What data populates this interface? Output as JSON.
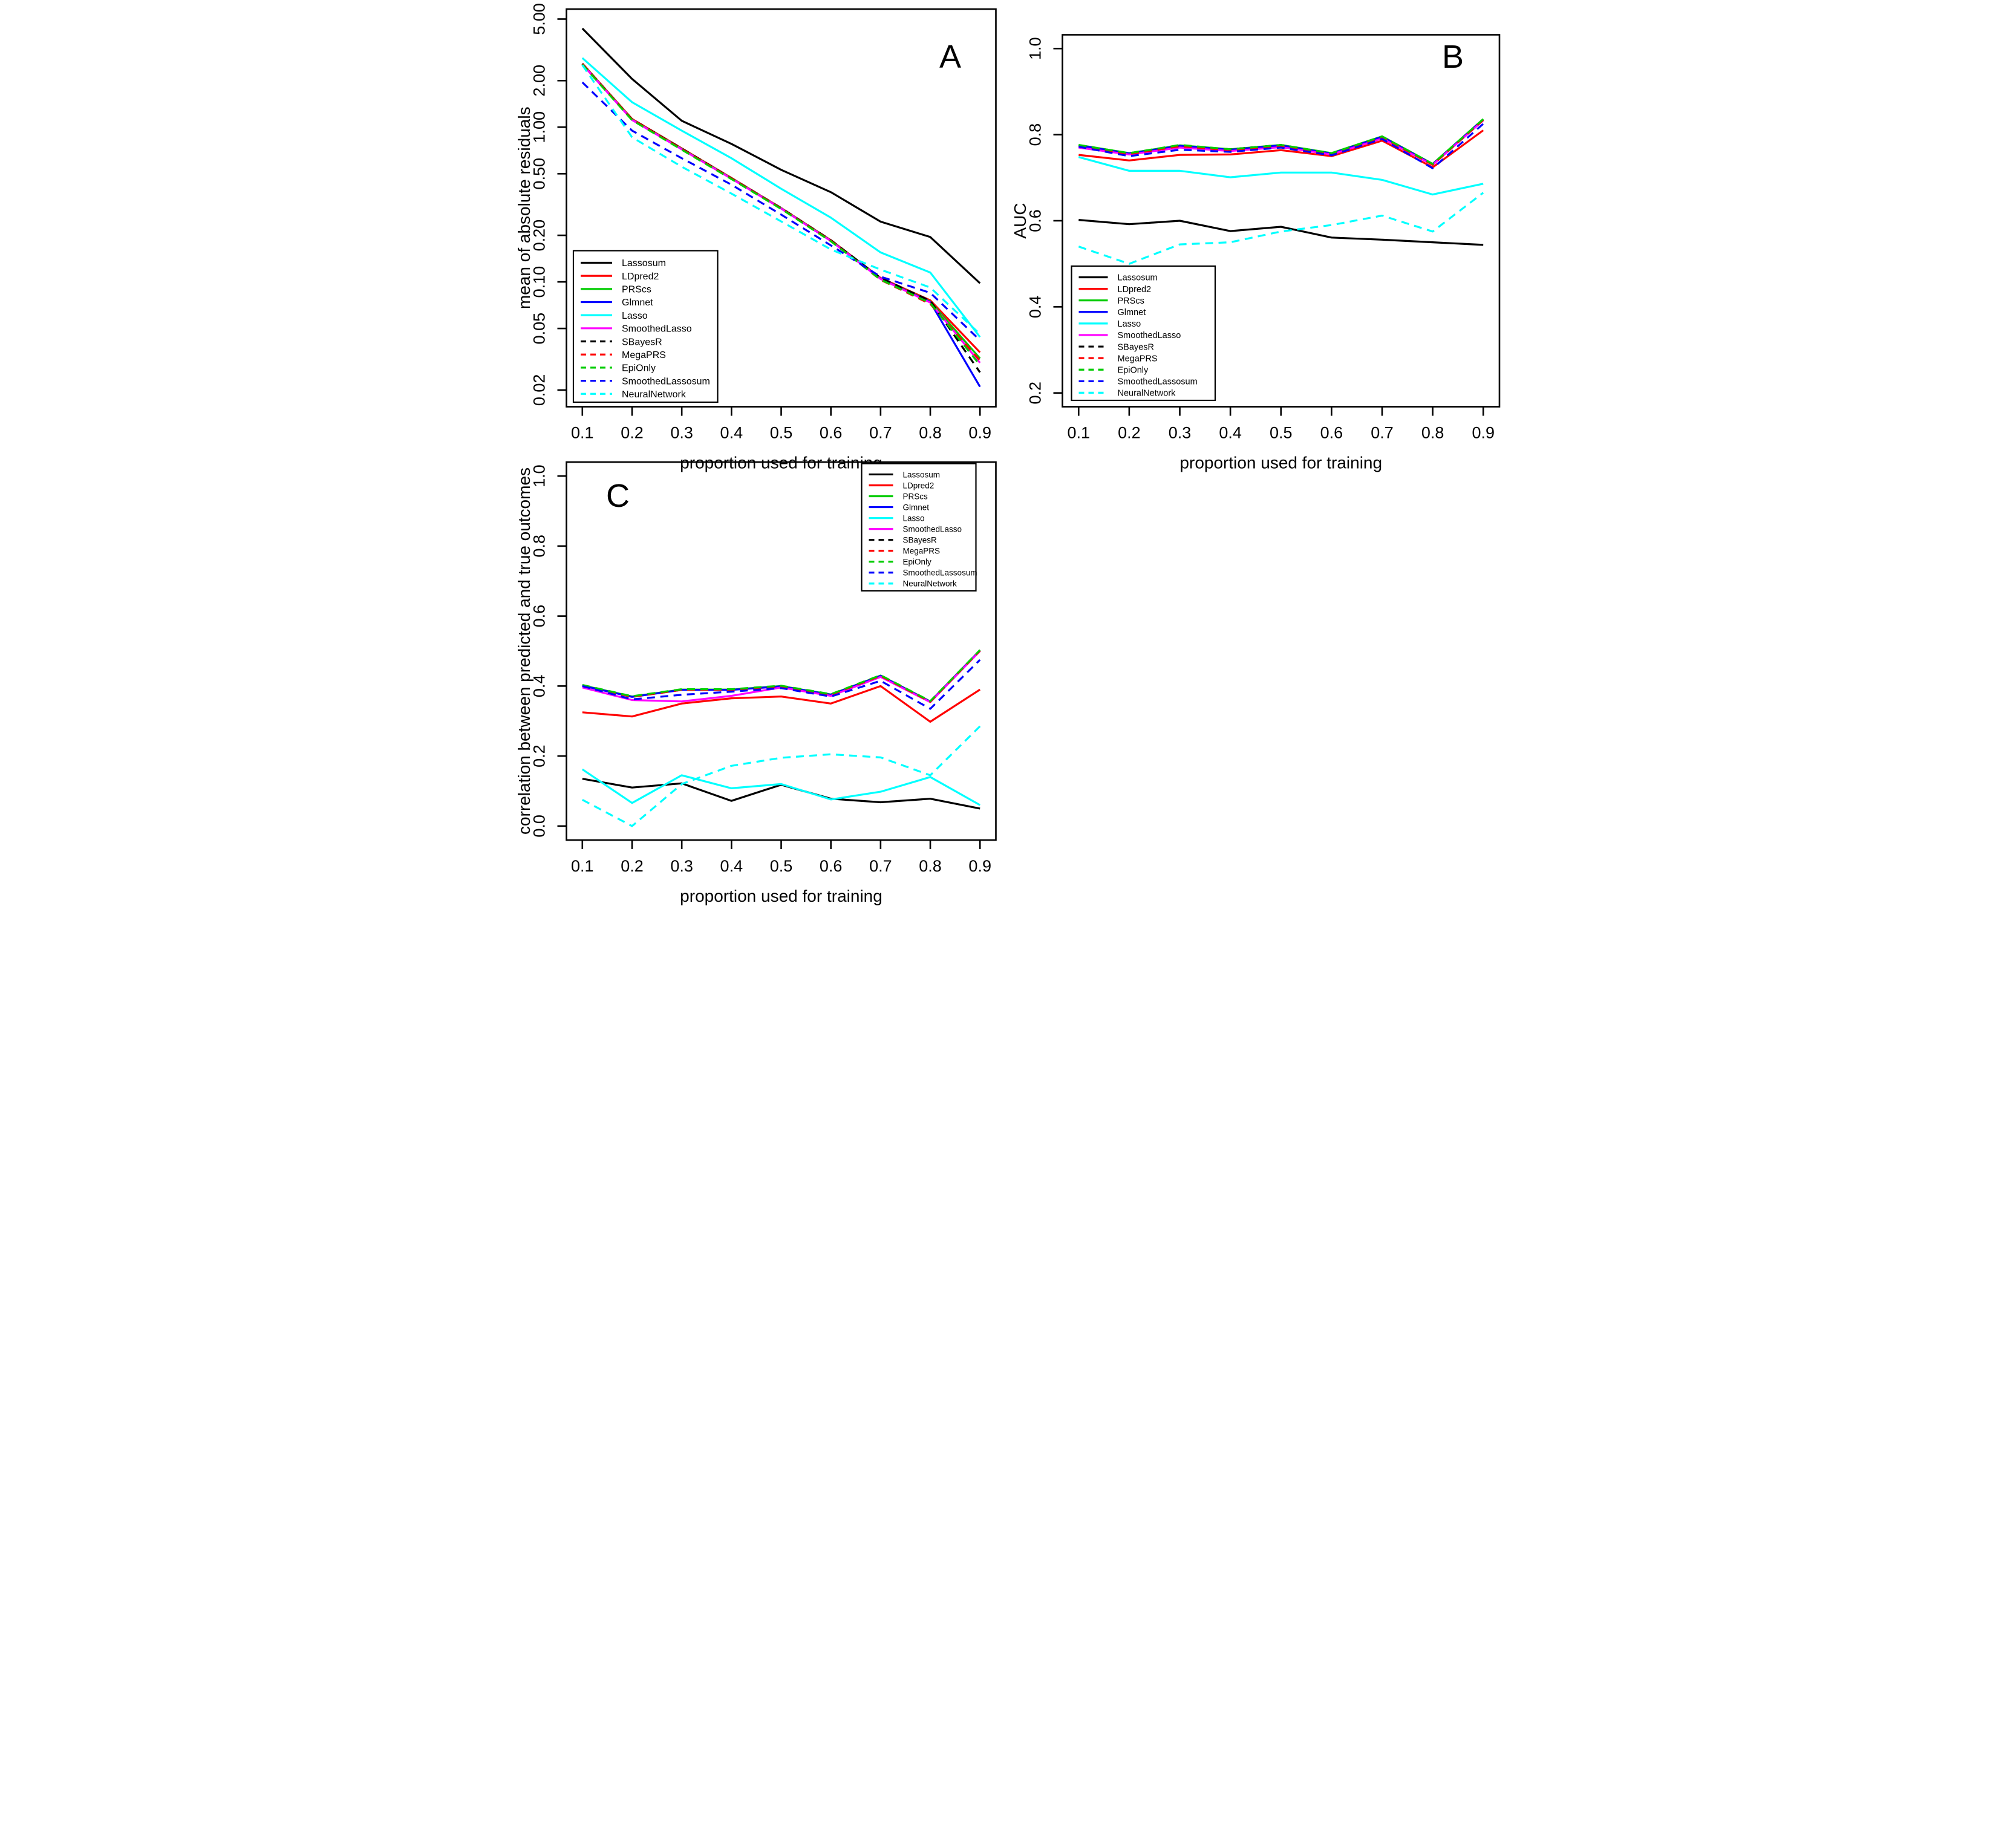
{
  "figure": {
    "background": "#FFFFFF",
    "xlabel": "proportion used for training",
    "panel_letters": [
      "A",
      "B",
      "C"
    ]
  },
  "methods": [
    {
      "name": "Lassosum",
      "color": "#000000",
      "dash": false
    },
    {
      "name": "LDpred2",
      "color": "#FF0000",
      "dash": false
    },
    {
      "name": "PRScs",
      "color": "#00CC00",
      "dash": false
    },
    {
      "name": "Glmnet",
      "color": "#0000FF",
      "dash": false
    },
    {
      "name": "Lasso",
      "color": "#00FFFF",
      "dash": false
    },
    {
      "name": "SmoothedLasso",
      "color": "#FF00FF",
      "dash": false
    },
    {
      "name": "SBayesR",
      "color": "#000000",
      "dash": true
    },
    {
      "name": "MegaPRS",
      "color": "#FF0000",
      "dash": true
    },
    {
      "name": "EpiOnly",
      "color": "#00CC00",
      "dash": true
    },
    {
      "name": "SmoothedLassosum",
      "color": "#0000FF",
      "dash": true
    },
    {
      "name": "NeuralNetwork",
      "color": "#00FFFF",
      "dash": true
    }
  ],
  "chart_data": [
    {
      "type": "line",
      "panel": "A",
      "xlabel": "proportion used for training",
      "ylabel": "mean of absolute residuals",
      "yscale": "log",
      "x": [
        0.1,
        0.2,
        0.3,
        0.4,
        0.5,
        0.6,
        0.7,
        0.8,
        0.9
      ],
      "xtick_labels": [
        "0.1",
        "0.2",
        "0.3",
        "0.4",
        "0.5",
        "0.6",
        "0.7",
        "0.8",
        "0.9"
      ],
      "yticks": [
        5,
        2,
        1,
        0.5,
        0.2,
        0.1,
        0.05,
        0.02
      ],
      "ytick_labels": [
        "5.00",
        "2.00",
        "1.00",
        "0.50",
        "0.20",
        "0.10",
        "0.05",
        "0.02"
      ],
      "ylim": [
        0.0156,
        5.8
      ],
      "legend_position": "bottom-left",
      "series": [
        {
          "method": "Lassosum",
          "values": [
            4.35,
            2.05,
            1.1,
            0.78,
            0.53,
            0.38,
            0.245,
            0.195,
            0.098
          ]
        },
        {
          "method": "LDpred2",
          "values": [
            2.58,
            1.13,
            0.73,
            0.47,
            0.3,
            0.186,
            0.106,
            0.076,
            0.035
          ]
        },
        {
          "method": "PRScs",
          "values": [
            2.56,
            1.12,
            0.725,
            0.467,
            0.299,
            0.185,
            0.105,
            0.0745,
            0.032
          ]
        },
        {
          "method": "Glmnet",
          "values": [
            2.55,
            1.115,
            0.72,
            0.465,
            0.298,
            0.184,
            0.105,
            0.074,
            0.021
          ]
        },
        {
          "method": "Lasso",
          "values": [
            2.8,
            1.45,
            0.95,
            0.63,
            0.4,
            0.26,
            0.155,
            0.115,
            0.044
          ]
        },
        {
          "method": "SmoothedLasso",
          "values": [
            2.55,
            1.115,
            0.72,
            0.465,
            0.298,
            0.184,
            0.1045,
            0.0735,
            0.03
          ]
        },
        {
          "method": "SBayesR",
          "values": [
            2.57,
            1.125,
            0.728,
            0.468,
            0.3,
            0.186,
            0.106,
            0.0755,
            0.026
          ]
        },
        {
          "method": "MegaPRS",
          "values": [
            2.56,
            1.12,
            0.722,
            0.466,
            0.298,
            0.1845,
            0.103,
            0.072,
            0.031
          ]
        },
        {
          "method": "EpiOnly",
          "values": [
            2.54,
            1.11,
            0.715,
            0.462,
            0.296,
            0.183,
            0.1035,
            0.073,
            0.029
          ]
        },
        {
          "method": "SmoothedLassosum",
          "values": [
            1.95,
            0.95,
            0.63,
            0.425,
            0.272,
            0.172,
            0.108,
            0.085,
            0.042
          ]
        },
        {
          "method": "NeuralNetwork",
          "values": [
            2.52,
            0.86,
            0.555,
            0.372,
            0.246,
            0.162,
            0.12,
            0.092,
            0.046
          ]
        }
      ]
    },
    {
      "type": "line",
      "panel": "B",
      "xlabel": "proportion used for training",
      "ylabel": "AUC",
      "yscale": "linear",
      "x": [
        0.1,
        0.2,
        0.3,
        0.4,
        0.5,
        0.6,
        0.7,
        0.8,
        0.9
      ],
      "xtick_labels": [
        "0.1",
        "0.2",
        "0.3",
        "0.4",
        "0.5",
        "0.6",
        "0.7",
        "0.8",
        "0.9"
      ],
      "yticks": [
        1.0,
        0.8,
        0.6,
        0.4,
        0.2
      ],
      "ytick_labels": [
        "1.0",
        "0.8",
        "0.6",
        "0.4",
        "0.2"
      ],
      "ylim": [
        0.2,
        1.0
      ],
      "legend_position": "bottom-left",
      "series": [
        {
          "method": "Lassosum",
          "values": [
            0.602,
            0.592,
            0.6,
            0.576,
            0.586,
            0.561,
            0.556,
            0.55,
            0.544
          ]
        },
        {
          "method": "LDpred2",
          "values": [
            0.753,
            0.74,
            0.753,
            0.754,
            0.764,
            0.75,
            0.786,
            0.724,
            0.81
          ]
        },
        {
          "method": "PRScs",
          "values": [
            0.776,
            0.757,
            0.775,
            0.766,
            0.776,
            0.757,
            0.796,
            0.732,
            0.836
          ]
        },
        {
          "method": "Glmnet",
          "values": [
            0.775,
            0.756,
            0.774,
            0.765,
            0.775,
            0.756,
            0.795,
            0.731,
            0.835
          ]
        },
        {
          "method": "Lasso",
          "values": [
            0.748,
            0.716,
            0.716,
            0.701,
            0.712,
            0.712,
            0.695,
            0.661,
            0.686
          ]
        },
        {
          "method": "SmoothedLasso",
          "values": [
            0.77,
            0.754,
            0.77,
            0.762,
            0.771,
            0.754,
            0.791,
            0.73,
            0.833
          ]
        },
        {
          "method": "SBayesR",
          "values": [
            0.775,
            0.756,
            0.774,
            0.766,
            0.776,
            0.756,
            0.795,
            0.731,
            0.835
          ]
        },
        {
          "method": "MegaPRS",
          "values": [
            0.774,
            0.755,
            0.773,
            0.764,
            0.774,
            0.755,
            0.794,
            0.73,
            0.834
          ]
        },
        {
          "method": "EpiOnly",
          "values": [
            0.776,
            0.757,
            0.776,
            0.766,
            0.776,
            0.757,
            0.796,
            0.732,
            0.836
          ]
        },
        {
          "method": "SmoothedLassosum",
          "values": [
            0.772,
            0.75,
            0.765,
            0.76,
            0.77,
            0.752,
            0.79,
            0.722,
            0.825
          ]
        },
        {
          "method": "NeuralNetwork",
          "values": [
            0.54,
            0.5,
            0.545,
            0.55,
            0.575,
            0.59,
            0.612,
            0.575,
            0.665
          ]
        }
      ]
    },
    {
      "type": "line",
      "panel": "C",
      "xlabel": "proportion used for training",
      "ylabel": "correlation between predicted and true outcomes",
      "yscale": "linear",
      "x": [
        0.1,
        0.2,
        0.3,
        0.4,
        0.5,
        0.6,
        0.7,
        0.8,
        0.9
      ],
      "xtick_labels": [
        "0.1",
        "0.2",
        "0.3",
        "0.4",
        "0.5",
        "0.6",
        "0.7",
        "0.8",
        "0.9"
      ],
      "yticks": [
        1.0,
        0.8,
        0.6,
        0.4,
        0.2,
        0.0
      ],
      "ytick_labels": [
        "1.0",
        "0.8",
        "0.6",
        "0.4",
        "0.2",
        "0.0"
      ],
      "ylim": [
        0.0,
        1.0
      ],
      "legend_position": "top-right",
      "series": [
        {
          "method": "Lassosum",
          "values": [
            0.135,
            0.11,
            0.122,
            0.072,
            0.118,
            0.078,
            0.068,
            0.078,
            0.05
          ]
        },
        {
          "method": "LDpred2",
          "values": [
            0.325,
            0.313,
            0.35,
            0.365,
            0.37,
            0.35,
            0.4,
            0.298,
            0.39
          ]
        },
        {
          "method": "PRScs",
          "values": [
            0.402,
            0.37,
            0.39,
            0.39,
            0.4,
            0.376,
            0.43,
            0.356,
            0.502
          ]
        },
        {
          "method": "Glmnet",
          "values": [
            0.401,
            0.369,
            0.389,
            0.389,
            0.399,
            0.375,
            0.429,
            0.355,
            0.501
          ]
        },
        {
          "method": "Lasso",
          "values": [
            0.162,
            0.066,
            0.145,
            0.108,
            0.12,
            0.076,
            0.098,
            0.14,
            0.06
          ]
        },
        {
          "method": "SmoothedLasso",
          "values": [
            0.396,
            0.36,
            0.356,
            0.372,
            0.396,
            0.372,
            0.426,
            0.354,
            0.5
          ]
        },
        {
          "method": "SBayesR",
          "values": [
            0.402,
            0.37,
            0.39,
            0.39,
            0.4,
            0.376,
            0.43,
            0.356,
            0.502
          ]
        },
        {
          "method": "MegaPRS",
          "values": [
            0.401,
            0.369,
            0.389,
            0.389,
            0.399,
            0.375,
            0.429,
            0.355,
            0.501
          ]
        },
        {
          "method": "EpiOnly",
          "values": [
            0.403,
            0.371,
            0.391,
            0.391,
            0.401,
            0.377,
            0.431,
            0.357,
            0.503
          ]
        },
        {
          "method": "SmoothedLassosum",
          "values": [
            0.4,
            0.362,
            0.375,
            0.384,
            0.394,
            0.37,
            0.415,
            0.335,
            0.475
          ]
        },
        {
          "method": "NeuralNetwork",
          "values": [
            0.075,
            0.0,
            0.12,
            0.172,
            0.195,
            0.205,
            0.196,
            0.145,
            0.285
          ]
        }
      ]
    }
  ]
}
